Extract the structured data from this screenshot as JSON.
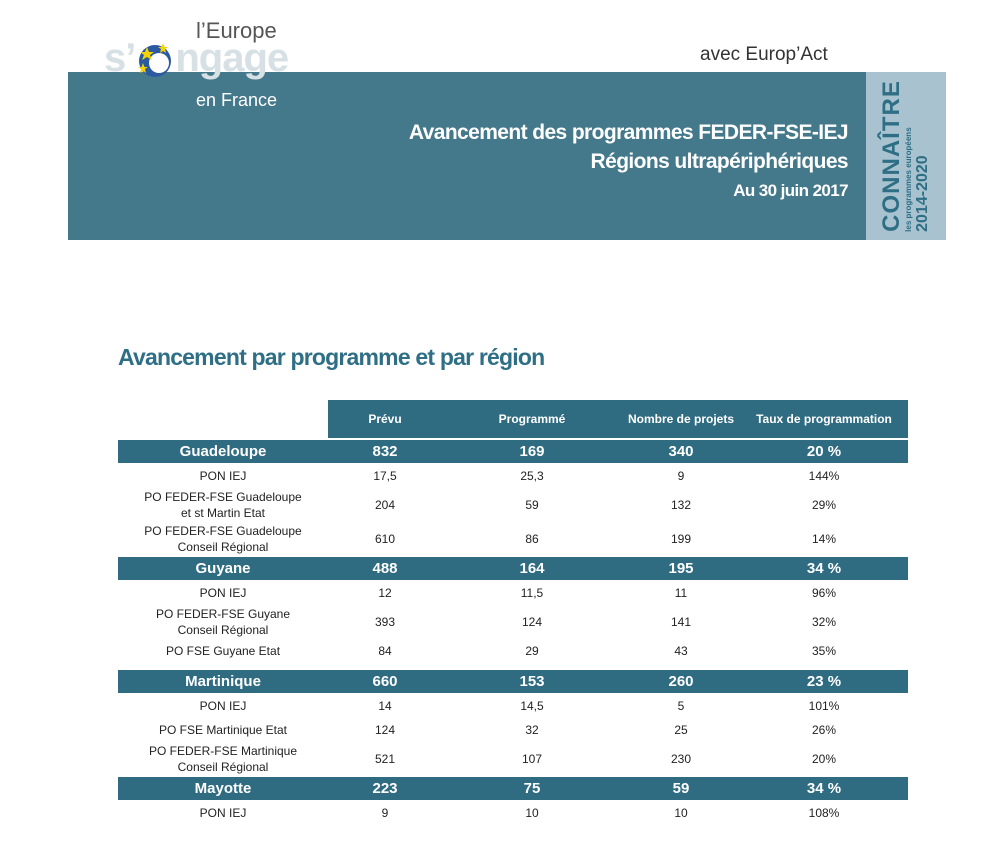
{
  "header": {
    "logo": {
      "line1": "l’Europe",
      "word_start": "s’",
      "word_end": "ngage",
      "line3": "en France"
    },
    "partner": {
      "prefix": "avec",
      "name": "Europ’Act"
    },
    "title_lines": [
      "Avancement des programmes FEDER-FSE-IEJ",
      "Régions ultrapériphériques",
      "Au 30 juin 2017"
    ],
    "side": {
      "word": "CONNAÎTRE",
      "sub": "les programmes européens",
      "years": "2014-2020"
    }
  },
  "section_title": "Avancement par programme et par région",
  "table": {
    "columns": [
      "Prévu",
      "Programmé",
      "Nombre de projets",
      "Taux de programmation"
    ],
    "groups": [
      {
        "region": [
          "Guadeloupe",
          "832",
          "169",
          "340",
          "20 %"
        ],
        "rows": [
          [
            "PON IEJ",
            "17,5",
            "25,3",
            "9",
            "144%"
          ],
          [
            "PO FEDER-FSE Guadeloupe et st Martin Etat",
            "204",
            "59",
            "132",
            "29%"
          ],
          [
            "PO FEDER-FSE Guadeloupe Conseil Régional",
            "610",
            "86",
            "199",
            "14%"
          ]
        ]
      },
      {
        "region": [
          "Guyane",
          "488",
          "164",
          "195",
          "34 %"
        ],
        "rows": [
          [
            "PON IEJ",
            "12",
            "11,5",
            "11",
            "96%"
          ],
          [
            "PO FEDER-FSE Guyane Conseil Régional",
            "393",
            "124",
            "141",
            "32%"
          ],
          [
            "PO FSE Guyane Etat",
            "84",
            "29",
            "43",
            "35%"
          ]
        ]
      },
      {
        "region": [
          "Martinique",
          "660",
          "153",
          "260",
          "23 %"
        ],
        "rows": [
          [
            "PON IEJ",
            "14",
            "14,5",
            "5",
            "101%"
          ],
          [
            "PO FSE Martinique Etat",
            "124",
            "32",
            "25",
            "26%"
          ],
          [
            "PO FEDER-FSE Martinique Conseil Régional",
            "521",
            "107",
            "230",
            "20%"
          ]
        ]
      },
      {
        "region": [
          "Mayotte",
          "223",
          "75",
          "59",
          "34 %"
        ],
        "rows": [
          [
            "PON IEJ",
            "9",
            "10",
            "10",
            "108%"
          ]
        ]
      }
    ]
  }
}
